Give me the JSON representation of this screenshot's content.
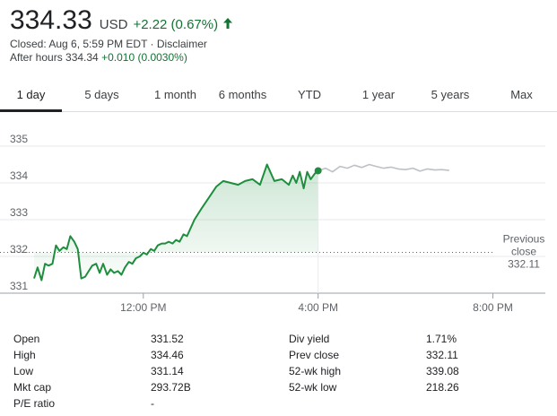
{
  "header": {
    "price": "334.33",
    "currency": "USD",
    "change": "+2.22 (0.67%)",
    "closed_text": "Closed: Aug 6, 5:59 PM EDT · Disclaimer",
    "after_hours_label": "After hours 334.34",
    "after_hours_change": "+0.010 (0.0030%)",
    "up_color": "#137333"
  },
  "tabs": [
    {
      "label": "1 day",
      "active": true
    },
    {
      "label": "5 days",
      "active": false
    },
    {
      "label": "1 month",
      "active": false
    },
    {
      "label": "6 months",
      "active": false
    },
    {
      "label": "YTD",
      "active": false
    },
    {
      "label": "1 year",
      "active": false
    },
    {
      "label": "5 years",
      "active": false
    },
    {
      "label": "Max",
      "active": false
    }
  ],
  "chart_data": {
    "type": "line",
    "y_ticks": [
      "335",
      "334",
      "333",
      "332",
      "331"
    ],
    "ylim": [
      331,
      335
    ],
    "x_ticks": [
      "12:00 PM",
      "4:00 PM",
      "8:00 PM"
    ],
    "x_tick_hours": [
      12,
      16,
      20
    ],
    "xlim": [
      9.5,
      21.2
    ],
    "previous_close": 332.11,
    "previous_close_label": [
      "Previous",
      "close",
      "332.11"
    ],
    "series": [
      {
        "role": "regular",
        "color": "#1e8e3e",
        "x": [
          9.5,
          9.58,
          9.67,
          9.75,
          9.83,
          9.92,
          10.0,
          10.08,
          10.17,
          10.25,
          10.33,
          10.42,
          10.5,
          10.58,
          10.67,
          10.75,
          10.83,
          10.92,
          11.0,
          11.08,
          11.17,
          11.25,
          11.33,
          11.42,
          11.5,
          11.58,
          11.67,
          11.75,
          11.83,
          11.92,
          12.0,
          12.08,
          12.17,
          12.25,
          12.33,
          12.42,
          12.5,
          12.58,
          12.67,
          12.75,
          12.83,
          12.92,
          13.0,
          13.17,
          13.33,
          13.5,
          13.67,
          13.83,
          14.0,
          14.17,
          14.33,
          14.5,
          14.67,
          14.83,
          15.0,
          15.17,
          15.33,
          15.42,
          15.5,
          15.58,
          15.67,
          15.75,
          15.83,
          15.92,
          16.0
        ],
        "y": [
          331.4,
          331.7,
          331.35,
          331.8,
          331.75,
          331.8,
          332.3,
          332.15,
          332.25,
          332.2,
          332.55,
          332.4,
          332.2,
          331.4,
          331.45,
          331.6,
          331.75,
          331.8,
          331.55,
          331.8,
          331.5,
          331.65,
          331.55,
          331.6,
          331.5,
          331.7,
          331.85,
          331.8,
          331.95,
          332.0,
          332.1,
          332.05,
          332.2,
          332.15,
          332.3,
          332.35,
          332.35,
          332.4,
          332.35,
          332.45,
          332.4,
          332.6,
          332.55,
          333.0,
          333.3,
          333.6,
          333.9,
          334.05,
          334.0,
          333.95,
          334.05,
          334.1,
          333.95,
          334.5,
          334.05,
          334.1,
          333.95,
          334.2,
          334.0,
          334.3,
          333.85,
          334.3,
          334.1,
          334.25,
          334.33
        ]
      },
      {
        "role": "after-hours",
        "color": "#bdc1c6",
        "x": [
          16.0,
          16.17,
          16.33,
          16.5,
          16.67,
          16.83,
          17.0,
          17.17,
          17.33,
          17.5,
          17.67,
          17.83,
          18.0,
          18.17,
          18.33,
          18.5,
          18.67,
          18.83,
          19.0
        ],
        "y": [
          334.33,
          334.4,
          334.3,
          334.45,
          334.4,
          334.48,
          334.42,
          334.5,
          334.45,
          334.4,
          334.43,
          334.38,
          334.36,
          334.4,
          334.32,
          334.38,
          334.35,
          334.36,
          334.34
        ]
      }
    ],
    "last_point": {
      "x": 16.0,
      "y": 334.33
    },
    "grid": true
  },
  "stats": {
    "left": [
      {
        "label": "Open",
        "value": "331.52"
      },
      {
        "label": "High",
        "value": "334.46"
      },
      {
        "label": "Low",
        "value": "331.14"
      },
      {
        "label": "Mkt cap",
        "value": "293.72B"
      },
      {
        "label": "P/E ratio",
        "value": "-"
      }
    ],
    "right": [
      {
        "label": "Div yield",
        "value": "1.71%"
      },
      {
        "label": "Prev close",
        "value": "332.11"
      },
      {
        "label": "52-wk high",
        "value": "339.08"
      },
      {
        "label": "52-wk low",
        "value": "218.26"
      }
    ]
  }
}
